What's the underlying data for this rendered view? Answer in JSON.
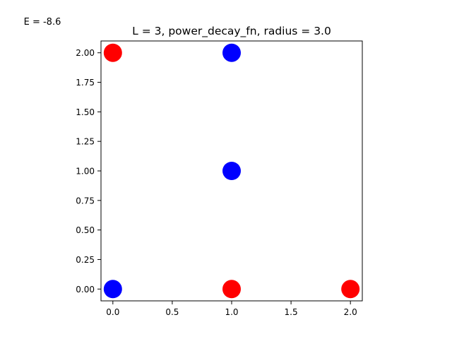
{
  "energy_label": "E = -8.6",
  "chart_data": {
    "type": "scatter",
    "title": "L = 3, power_decay_fn, radius = 3.0",
    "xlabel": "",
    "ylabel": "",
    "xlim": [
      -0.1,
      2.1
    ],
    "ylim": [
      -0.1,
      2.1
    ],
    "x_ticks": [
      {
        "value": 0.0,
        "label": "0.0"
      },
      {
        "value": 0.5,
        "label": "0.5"
      },
      {
        "value": 1.0,
        "label": "1.0"
      },
      {
        "value": 1.5,
        "label": "1.5"
      },
      {
        "value": 2.0,
        "label": "2.0"
      }
    ],
    "y_ticks": [
      {
        "value": 0.0,
        "label": "0.00"
      },
      {
        "value": 0.25,
        "label": "0.25"
      },
      {
        "value": 0.5,
        "label": "0.50"
      },
      {
        "value": 0.75,
        "label": "0.75"
      },
      {
        "value": 1.0,
        "label": "1.00"
      },
      {
        "value": 1.25,
        "label": "1.25"
      },
      {
        "value": 1.5,
        "label": "1.50"
      },
      {
        "value": 1.75,
        "label": "1.75"
      },
      {
        "value": 2.0,
        "label": "2.00"
      }
    ],
    "grid": false,
    "colors": {
      "red": "#ff0000",
      "blue": "#0000ff"
    },
    "points": [
      {
        "x": 0,
        "y": 0,
        "color": "blue"
      },
      {
        "x": 0,
        "y": 2,
        "color": "red"
      },
      {
        "x": 1,
        "y": 0,
        "color": "red"
      },
      {
        "x": 1,
        "y": 1,
        "color": "blue"
      },
      {
        "x": 1,
        "y": 2,
        "color": "blue"
      },
      {
        "x": 2,
        "y": 0,
        "color": "red"
      }
    ]
  }
}
